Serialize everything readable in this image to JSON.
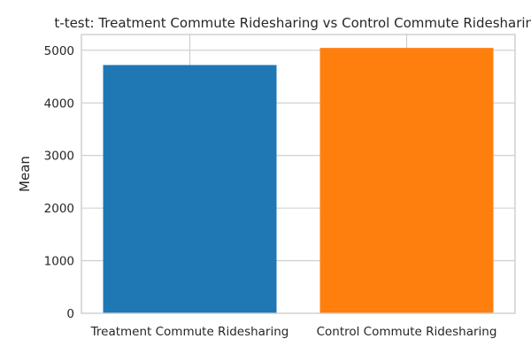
{
  "chart_data": {
    "type": "bar",
    "title": "t-test: Treatment Commute Ridesharing vs Control Commute Ridesharing",
    "xlabel": "",
    "ylabel": "Mean",
    "categories": [
      "Treatment Commute Ridesharing",
      "Control Commute Ridesharing"
    ],
    "values": [
      4720,
      5045
    ],
    "colors": [
      "#1f77b4",
      "#ff7f0e"
    ],
    "ylim": [
      0,
      5300
    ],
    "yticks": [
      0,
      1000,
      2000,
      3000,
      4000,
      5000
    ],
    "grid": true,
    "legend": "none"
  }
}
